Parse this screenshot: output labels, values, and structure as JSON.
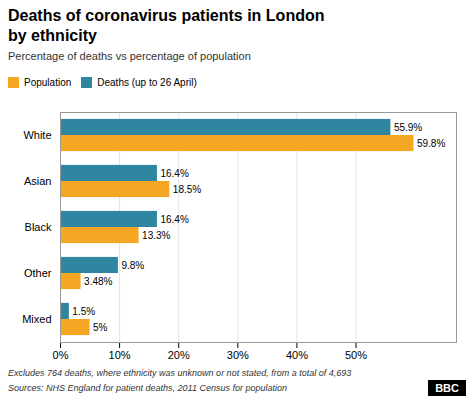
{
  "chart_data": {
    "type": "bar",
    "orientation": "horizontal",
    "title": "Deaths of coronavirus patients in London\nby ethnicity",
    "subtitle": "Percentage of deaths vs percentage of population",
    "categories": [
      "White",
      "Asian",
      "Black",
      "Other",
      "Mixed"
    ],
    "series": [
      {
        "name": "Population",
        "color": "#F5A623",
        "values": [
          59.8,
          18.5,
          13.3,
          3.48,
          5.0
        ],
        "value_labels": [
          "59.8%",
          "18.5%",
          "13.3%",
          "3.48%",
          "5%"
        ]
      },
      {
        "name": "Deaths (up to 26 April)",
        "color": "#2E86A0",
        "values": [
          55.9,
          16.4,
          16.4,
          9.8,
          1.5
        ],
        "value_labels": [
          "55.9%",
          "16.4%",
          "16.4%",
          "9.8%",
          "1.5%"
        ]
      }
    ],
    "xlim": [
      0,
      67
    ],
    "xticks": [
      {
        "value": 0,
        "label": "0%"
      },
      {
        "value": 10,
        "label": "10%"
      },
      {
        "value": 20,
        "label": "20%"
      },
      {
        "value": 30,
        "label": "30%"
      },
      {
        "value": 40,
        "label": "40%"
      },
      {
        "value": 50,
        "label": "50%"
      }
    ],
    "grid": true,
    "legend": "upper left",
    "data_labels": true,
    "annotations": [
      "Excludes 764 deaths, where ethnicity was unknown or not stated, from a total of 4,693",
      "Sources: NHS England for patient deaths, 2011 Census for population",
      "BBC"
    ]
  }
}
